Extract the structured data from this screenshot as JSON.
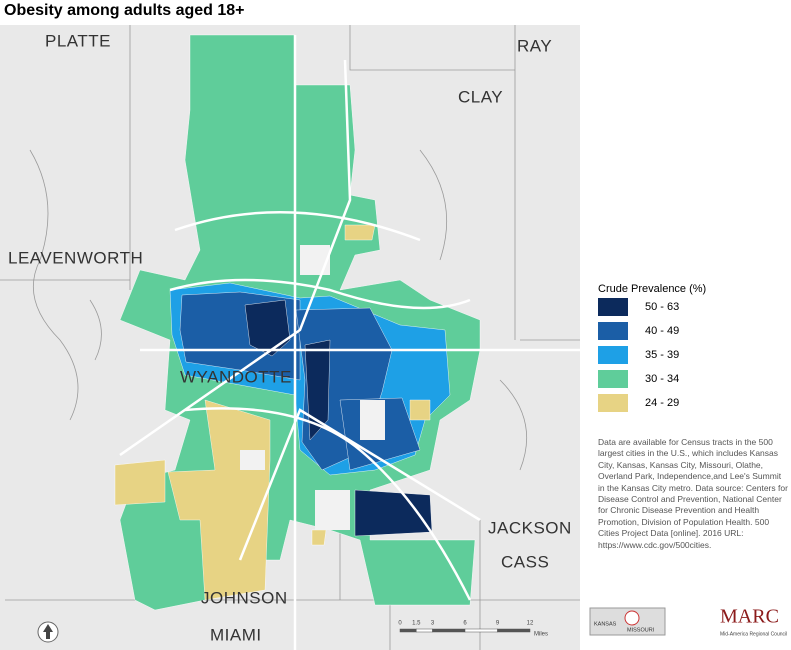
{
  "title": "Obesity among adults aged 18+",
  "counties": [
    "PLATTE",
    "RAY",
    "CLAY",
    "LEAVENWORTH",
    "WYANDOTTE",
    "JACKSON",
    "CASS",
    "JOHNSON",
    "MIAMI"
  ],
  "legend": {
    "title": "Crude Prevalence (%)",
    "classes": [
      {
        "label": "50 - 63",
        "color": "#0c2a5c"
      },
      {
        "label": "40 - 49",
        "color": "#1b5ea6"
      },
      {
        "label": "35 - 39",
        "color": "#1ea0e6"
      },
      {
        "label": "30 - 34",
        "color": "#5fcd9a"
      },
      {
        "label": "24 - 29",
        "color": "#e7d384"
      }
    ]
  },
  "note": "Data are available for Census tracts in the 500 largest cities in the U.S., which includes Kansas City, Kansas, Kansas City, Missouri, Olathe, Overland Park, Independence,and Lee's Summit in the Kansas City metro. Data source: Centers for Disease Control and Prevention, National Center for Chronic Disease Prevention and Health Promotion, Division of Population Health. 500 Cities Project Data [online]. 2016 URL: https://www.cdc.gov/500cities.",
  "scale_bar": {
    "ticks": [
      0,
      1.5,
      3,
      6,
      9,
      12
    ],
    "unit": "Miles"
  },
  "inset_map": {
    "labels": [
      "KANSAS",
      "MISSOURI"
    ]
  },
  "logo": {
    "name": "MARC",
    "subtitle": "Mid-America Regional Council"
  }
}
